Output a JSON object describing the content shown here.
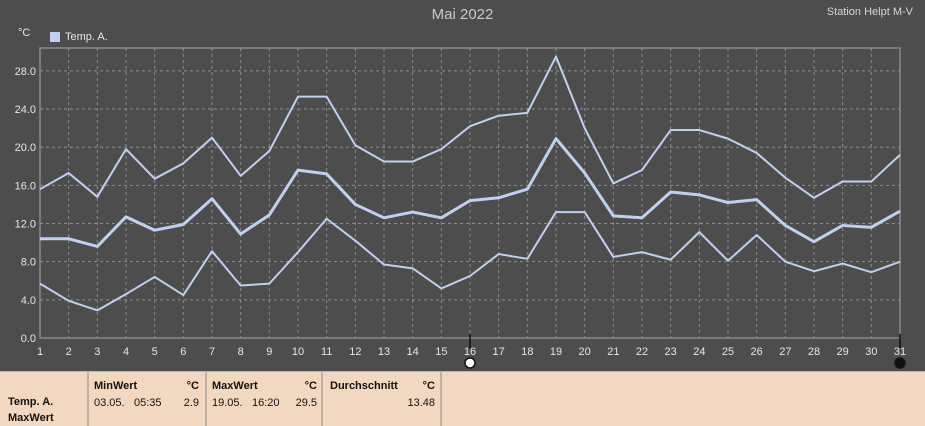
{
  "header": {
    "title": "Mai 2022",
    "station": "Station Helpt M-V",
    "unit": "°C",
    "legend_label": "Temp. A."
  },
  "chart_data": {
    "type": "line",
    "title": "Mai 2022",
    "xlabel": "",
    "ylabel": "°C",
    "x": [
      1,
      2,
      3,
      4,
      5,
      6,
      7,
      8,
      9,
      10,
      11,
      12,
      13,
      14,
      15,
      16,
      17,
      18,
      19,
      20,
      21,
      22,
      23,
      24,
      25,
      26,
      27,
      28,
      29,
      30,
      31
    ],
    "xlim": [
      1,
      31
    ],
    "ylim": [
      0,
      30.4
    ],
    "yticks": [
      "0.0",
      "4.0",
      "8.0",
      "12.0",
      "16.0",
      "20.0",
      "24.0",
      "28.0"
    ],
    "grid": true,
    "series": [
      {
        "name": "Temp. A.",
        "role": "max",
        "values": [
          15.6,
          17.3,
          14.8,
          19.8,
          16.7,
          18.3,
          21.0,
          17.0,
          19.6,
          25.3,
          25.3,
          20.2,
          18.5,
          18.5,
          19.8,
          22.2,
          23.3,
          23.6,
          29.5,
          22.0,
          16.2,
          17.6,
          21.8,
          21.8,
          20.9,
          19.4,
          16.8,
          14.7,
          16.4,
          16.4,
          19.2
        ]
      },
      {
        "name": "Temp. A.",
        "role": "avg",
        "values": [
          10.4,
          10.4,
          9.6,
          12.7,
          11.3,
          11.9,
          14.6,
          10.9,
          12.9,
          17.6,
          17.2,
          14.0,
          12.6,
          13.2,
          12.6,
          14.4,
          14.7,
          15.6,
          20.9,
          17.3,
          12.8,
          12.6,
          15.3,
          15.0,
          14.2,
          14.5,
          11.8,
          10.1,
          11.8,
          11.6,
          13.3
        ]
      },
      {
        "name": "Temp. A.",
        "role": "min",
        "values": [
          5.7,
          3.9,
          2.9,
          4.6,
          6.4,
          4.5,
          9.1,
          5.5,
          5.7,
          9.0,
          12.5,
          10.2,
          7.7,
          7.3,
          5.2,
          6.5,
          8.8,
          8.3,
          13.2,
          13.2,
          8.5,
          9.0,
          8.2,
          11.1,
          8.1,
          10.8,
          8.0,
          7.0,
          7.8,
          6.9,
          8.0
        ]
      }
    ],
    "colors": {
      "line": "#c0d0f0",
      "grid": "#8e8e8e",
      "background": "#4d4d4d",
      "frame": "#8a8a8a"
    },
    "markers": [
      {
        "day": 16,
        "type": "open-circle"
      },
      {
        "day": 31,
        "type": "filled-circle"
      }
    ]
  },
  "stats": {
    "series_label": "Temp. A.",
    "row_label": "MaxWert",
    "min": {
      "header": "MinWert",
      "unit": "°C",
      "date": "03.05.",
      "time": "05:35",
      "value": "2.9"
    },
    "max": {
      "header": "MaxWert",
      "unit": "°C",
      "date": "19.05.",
      "time": "16:20",
      "value": "29.5"
    },
    "avg": {
      "header": "Durchschnitt",
      "unit": "°C",
      "value": "13.48"
    }
  }
}
